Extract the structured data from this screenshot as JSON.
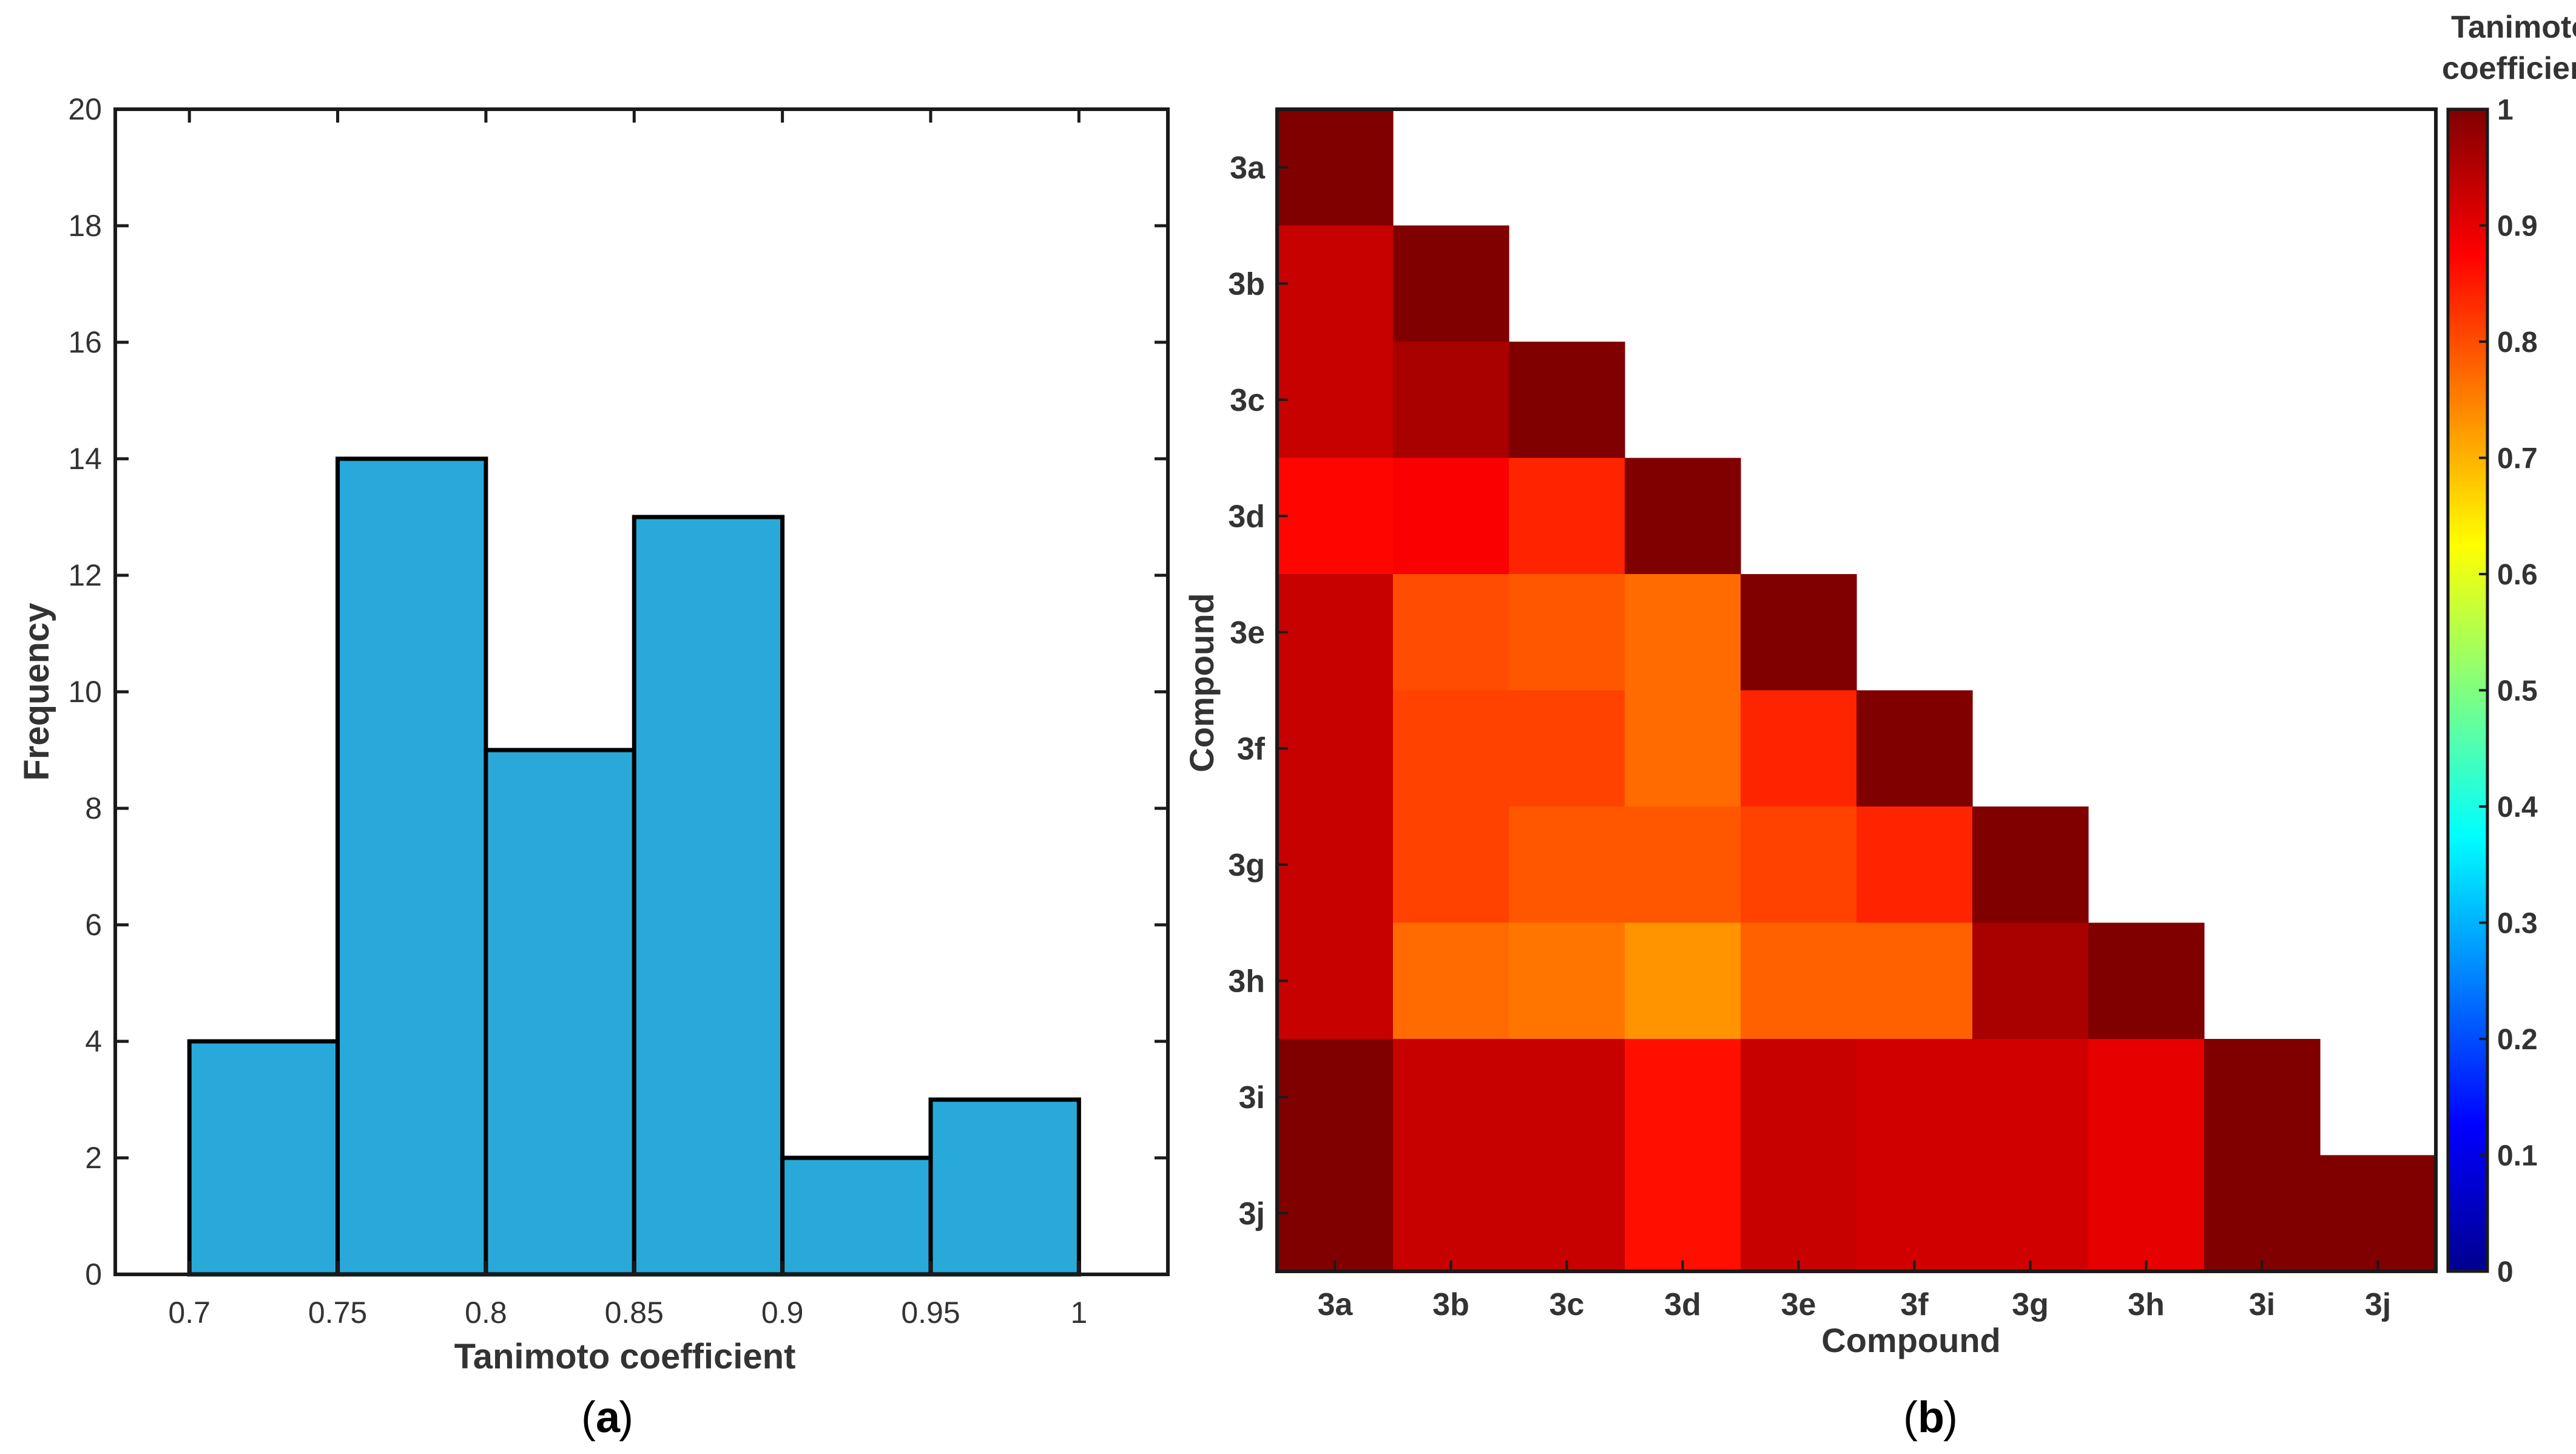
{
  "chart_data": [
    {
      "type": "bar",
      "panel_label": "a",
      "xlabel": "Tanimoto coefficient",
      "ylabel": "Frequency",
      "xlim": [
        0.675,
        1.03
      ],
      "ylim": [
        0,
        20
      ],
      "x_ticks": [
        "0.7",
        "0.75",
        "0.8",
        "0.85",
        "0.9",
        "0.95",
        "1"
      ],
      "y_ticks": [
        "0",
        "2",
        "4",
        "6",
        "8",
        "10",
        "12",
        "14",
        "16",
        "18",
        "20"
      ],
      "bin_edges": [
        0.7,
        0.75,
        0.8,
        0.85,
        0.9,
        0.95,
        1.0
      ],
      "values": [
        4,
        14,
        9,
        13,
        2,
        3
      ],
      "grid": false,
      "colors": {
        "bar": "#29a9da",
        "edge": "#000000"
      }
    },
    {
      "type": "heatmap",
      "panel_label": "b",
      "xlabel": "Compound",
      "ylabel": "Compound",
      "categories": [
        "3a",
        "3b",
        "3c",
        "3d",
        "3e",
        "3f",
        "3g",
        "3h",
        "3i",
        "3j"
      ],
      "colorbar": {
        "title_line1": "Tanimoto",
        "title_line2": "coefficient",
        "range": [
          0,
          1
        ],
        "ticks": [
          "0",
          "0.1",
          "0.2",
          "0.3",
          "0.4",
          "0.5",
          "0.6",
          "0.7",
          "0.8",
          "0.9",
          "1"
        ],
        "colormap": "jet"
      },
      "matrix": [
        [
          1.0
        ],
        [
          0.93,
          1.0
        ],
        [
          0.93,
          0.96,
          1.0
        ],
        [
          0.87,
          0.88,
          0.84,
          1.0
        ],
        [
          0.93,
          0.8,
          0.79,
          0.77,
          1.0
        ],
        [
          0.93,
          0.81,
          0.81,
          0.77,
          0.84,
          1.0
        ],
        [
          0.93,
          0.81,
          0.79,
          0.79,
          0.81,
          0.84,
          1.0
        ],
        [
          0.93,
          0.77,
          0.76,
          0.73,
          0.78,
          0.78,
          0.96,
          1.0
        ],
        [
          1.0,
          0.93,
          0.93,
          0.86,
          0.93,
          0.92,
          0.92,
          0.9,
          1.0
        ],
        [
          1.0,
          0.93,
          0.93,
          0.86,
          0.93,
          0.92,
          0.92,
          0.9,
          1.0,
          1.0
        ]
      ]
    }
  ]
}
